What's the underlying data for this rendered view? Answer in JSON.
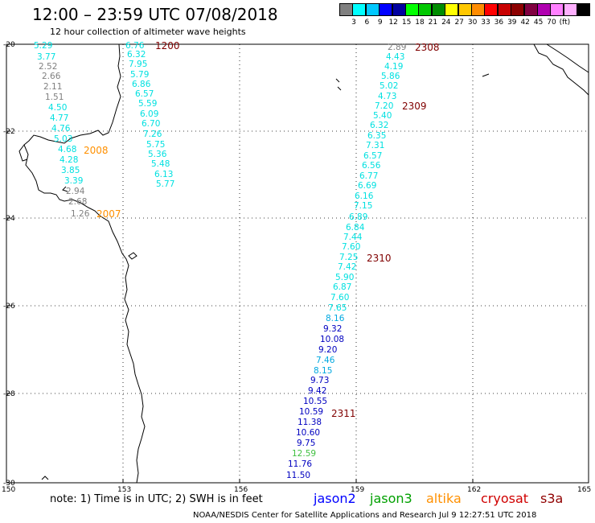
{
  "title": "12:00 – 23:59 UTC 07/08/2018",
  "subtitle": "12 hour collection of altimeter wave heights",
  "colorbar": {
    "colors": [
      "#808080",
      "#00ffff",
      "#00c8ff",
      "#0000ff",
      "#0000a0",
      "#00ff00",
      "#00c800",
      "#008c00",
      "#ffff00",
      "#ffc800",
      "#ff8c00",
      "#ff0000",
      "#c80000",
      "#8c0000",
      "#800040",
      "#b000b0",
      "#ff80ff",
      "#ffb0ff",
      "#000000"
    ],
    "ticks": [
      "3",
      "6",
      "9",
      "12",
      "15",
      "18",
      "21",
      "24",
      "27",
      "30",
      "33",
      "36",
      "39",
      "42",
      "45",
      "70",
      "(ft)"
    ]
  },
  "lat_labels": [
    "-20",
    "-22",
    "-24",
    "-26",
    "-28",
    "-30"
  ],
  "lon_labels": [
    "150",
    "153",
    "156",
    "159",
    "162",
    "165"
  ],
  "colors": {
    "grey": "#808080",
    "cyan": "#00e0e0",
    "lightblue": "#00a8e0",
    "blue": "#0000c0",
    "green": "#40c040",
    "orange": "#ff9000",
    "darkred": "#800000",
    "coast": "#000000",
    "grid": "#000000"
  },
  "swh_values": [
    {
      "v": "5.29",
      "c": "cyan"
    },
    {
      "v": "3.77",
      "c": "cyan"
    },
    {
      "v": "2.52",
      "c": "grey"
    },
    {
      "v": "2.66",
      "c": "grey"
    },
    {
      "v": "2.11",
      "c": "grey"
    },
    {
      "v": "1.51",
      "c": "grey"
    },
    {
      "v": "4.50",
      "c": "cyan"
    },
    {
      "v": "4.77",
      "c": "cyan"
    },
    {
      "v": "4.76",
      "c": "cyan"
    },
    {
      "v": "5.03",
      "c": "cyan"
    },
    {
      "v": "4.68",
      "c": "cyan"
    },
    {
      "v": "4.28",
      "c": "cyan"
    },
    {
      "v": "3.85",
      "c": "cyan"
    },
    {
      "v": "3.39",
      "c": "cyan"
    },
    {
      "v": "2.94",
      "c": "grey"
    },
    {
      "v": "2.68",
      "c": "grey"
    },
    {
      "v": "1.26",
      "c": "grey"
    },
    {
      "v": "6.76",
      "c": "cyan"
    },
    {
      "v": "6.32",
      "c": "cyan"
    },
    {
      "v": "7.95",
      "c": "cyan"
    },
    {
      "v": "5.79",
      "c": "cyan"
    },
    {
      "v": "6.86",
      "c": "cyan"
    },
    {
      "v": "6.57",
      "c": "cyan"
    },
    {
      "v": "5.59",
      "c": "cyan"
    },
    {
      "v": "6.09",
      "c": "cyan"
    },
    {
      "v": "6.70",
      "c": "cyan"
    },
    {
      "v": "7.26",
      "c": "cyan"
    },
    {
      "v": "5.75",
      "c": "cyan"
    },
    {
      "v": "5.36",
      "c": "cyan"
    },
    {
      "v": "5.48",
      "c": "cyan"
    },
    {
      "v": "6.13",
      "c": "cyan"
    },
    {
      "v": "5.77",
      "c": "cyan"
    },
    {
      "v": "2.89",
      "c": "grey"
    },
    {
      "v": "4.43",
      "c": "cyan"
    },
    {
      "v": "4.19",
      "c": "cyan"
    },
    {
      "v": "5.86",
      "c": "cyan"
    },
    {
      "v": "5.02",
      "c": "cyan"
    },
    {
      "v": "4.73",
      "c": "cyan"
    },
    {
      "v": "7.20",
      "c": "cyan"
    },
    {
      "v": "5.40",
      "c": "cyan"
    },
    {
      "v": "6.32",
      "c": "cyan"
    },
    {
      "v": "6.35",
      "c": "cyan"
    },
    {
      "v": "7.31",
      "c": "cyan"
    },
    {
      "v": "6.57",
      "c": "cyan"
    },
    {
      "v": "6.56",
      "c": "cyan"
    },
    {
      "v": "6.77",
      "c": "cyan"
    },
    {
      "v": "6.69",
      "c": "cyan"
    },
    {
      "v": "6.16",
      "c": "cyan"
    },
    {
      "v": "7.15",
      "c": "cyan"
    },
    {
      "v": "6.89",
      "c": "cyan"
    },
    {
      "v": "6.84",
      "c": "cyan"
    },
    {
      "v": "7.44",
      "c": "cyan"
    },
    {
      "v": "7.60",
      "c": "cyan"
    },
    {
      "v": "7.25",
      "c": "cyan"
    },
    {
      "v": "7.42",
      "c": "cyan"
    },
    {
      "v": "5.90",
      "c": "cyan"
    },
    {
      "v": "6.87",
      "c": "cyan"
    },
    {
      "v": "7.60",
      "c": "cyan"
    },
    {
      "v": "7.65",
      "c": "cyan"
    },
    {
      "v": "8.16",
      "c": "lightblue"
    },
    {
      "v": "9.32",
      "c": "blue"
    },
    {
      "v": "10.08",
      "c": "blue"
    },
    {
      "v": "9.20",
      "c": "blue"
    },
    {
      "v": "7.46",
      "c": "lightblue"
    },
    {
      "v": "8.15",
      "c": "lightblue"
    },
    {
      "v": "9.73",
      "c": "blue"
    },
    {
      "v": "9.42",
      "c": "blue"
    },
    {
      "v": "10.55",
      "c": "blue"
    },
    {
      "v": "10.59",
      "c": "blue"
    },
    {
      "v": "11.38",
      "c": "blue"
    },
    {
      "v": "10.60",
      "c": "blue"
    },
    {
      "v": "9.75",
      "c": "blue"
    },
    {
      "v": "12.59",
      "c": "green"
    },
    {
      "v": "11.76",
      "c": "blue"
    },
    {
      "v": "11.50",
      "c": "blue"
    }
  ],
  "time_labels": [
    {
      "t": "1200",
      "c": "darkred"
    },
    {
      "t": "2008",
      "c": "orange"
    },
    {
      "t": "2007",
      "c": "orange"
    },
    {
      "t": "2308",
      "c": "darkred"
    },
    {
      "t": "2309",
      "c": "darkred"
    },
    {
      "t": "2310",
      "c": "darkred"
    },
    {
      "t": "2311",
      "c": "darkred"
    }
  ],
  "note": "note: 1) Time is in UTC; 2) SWH is in feet",
  "satellites": [
    {
      "name": "jason2",
      "color": "#0000ff"
    },
    {
      "name": "jason3",
      "color": "#00a000"
    },
    {
      "name": "altika",
      "color": "#ff9000"
    },
    {
      "name": "cryosat",
      "color": "#d00000"
    },
    {
      "name": "s3a",
      "color": "#900000"
    }
  ],
  "footer": "NOAA/NESDIS Center for Satellite Applications and Research    Jul  9 12:27:51 UTC 2018"
}
